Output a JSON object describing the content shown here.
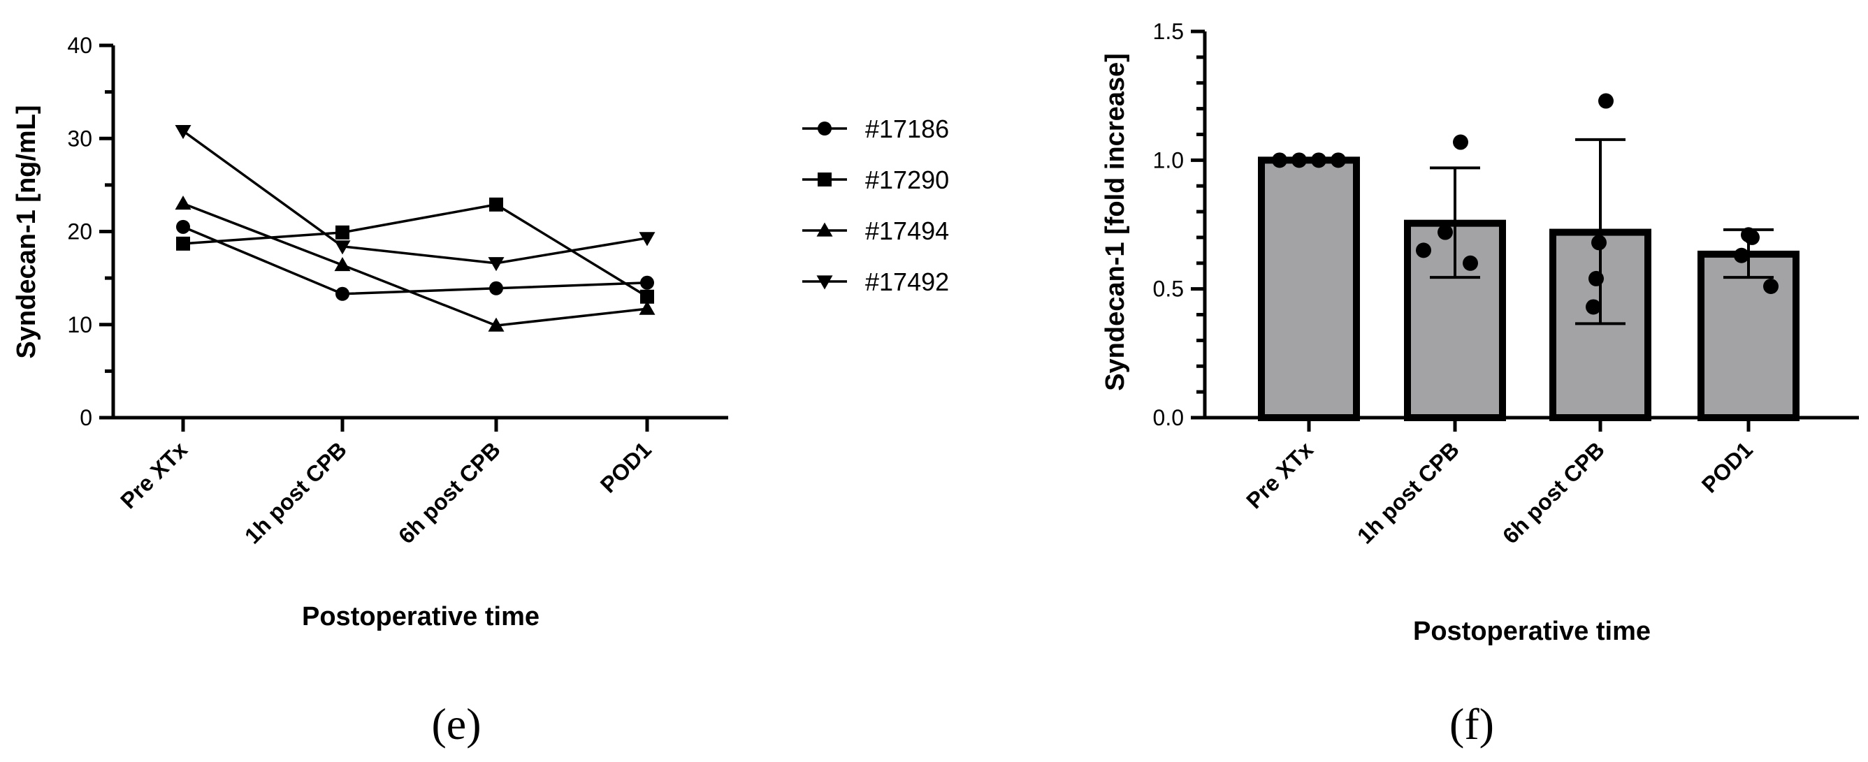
{
  "chart_data": [
    {
      "type": "line",
      "panel_label": "(e)",
      "categories": [
        "Pre XTx",
        "1h post CPB",
        "6h post CPB",
        "POD1"
      ],
      "series": [
        {
          "name": "#17186",
          "marker": "circle",
          "values": [
            20.5,
            13.3,
            13.9,
            14.5
          ]
        },
        {
          "name": "#17290",
          "marker": "square",
          "values": [
            18.7,
            19.9,
            22.9,
            13.0
          ]
        },
        {
          "name": "#17494",
          "marker": "triangle-up",
          "values": [
            23.0,
            16.4,
            9.9,
            11.7
          ]
        },
        {
          "name": "#17492",
          "marker": "triangle-down",
          "values": [
            30.8,
            18.4,
            16.6,
            19.3
          ]
        }
      ],
      "xlabel": "Postoperative time",
      "ylabel": "Syndecan-1 [ng/mL]",
      "ylim": [
        0,
        40
      ],
      "yticks": [
        "0",
        "10",
        "20",
        "30",
        "40"
      ],
      "legend": "right",
      "grid": false
    },
    {
      "type": "bar",
      "panel_label": "(f)",
      "categories": [
        "Pre XTx",
        "1h post CPB",
        "6h post CPB",
        "POD1"
      ],
      "values": [
        1.0,
        0.755,
        0.72,
        0.635
      ],
      "error_upper": [
        1.0,
        0.97,
        1.08,
        0.73
      ],
      "error_lower": [
        1.0,
        0.545,
        0.365,
        0.545
      ],
      "points": [
        [
          1.0,
          1.0,
          1.0,
          1.0
        ],
        [
          1.07,
          0.72,
          0.65,
          0.6
        ],
        [
          1.23,
          0.68,
          0.54,
          0.43
        ],
        [
          0.71,
          0.7,
          0.63,
          0.51
        ]
      ],
      "xlabel": "Postoperative time",
      "ylabel": "Syndecan-1 [fold increase]",
      "ylim": [
        0,
        1.5
      ],
      "yticks": [
        "0.0",
        "0.5",
        "1.0",
        "1.5"
      ],
      "grid": false
    }
  ]
}
